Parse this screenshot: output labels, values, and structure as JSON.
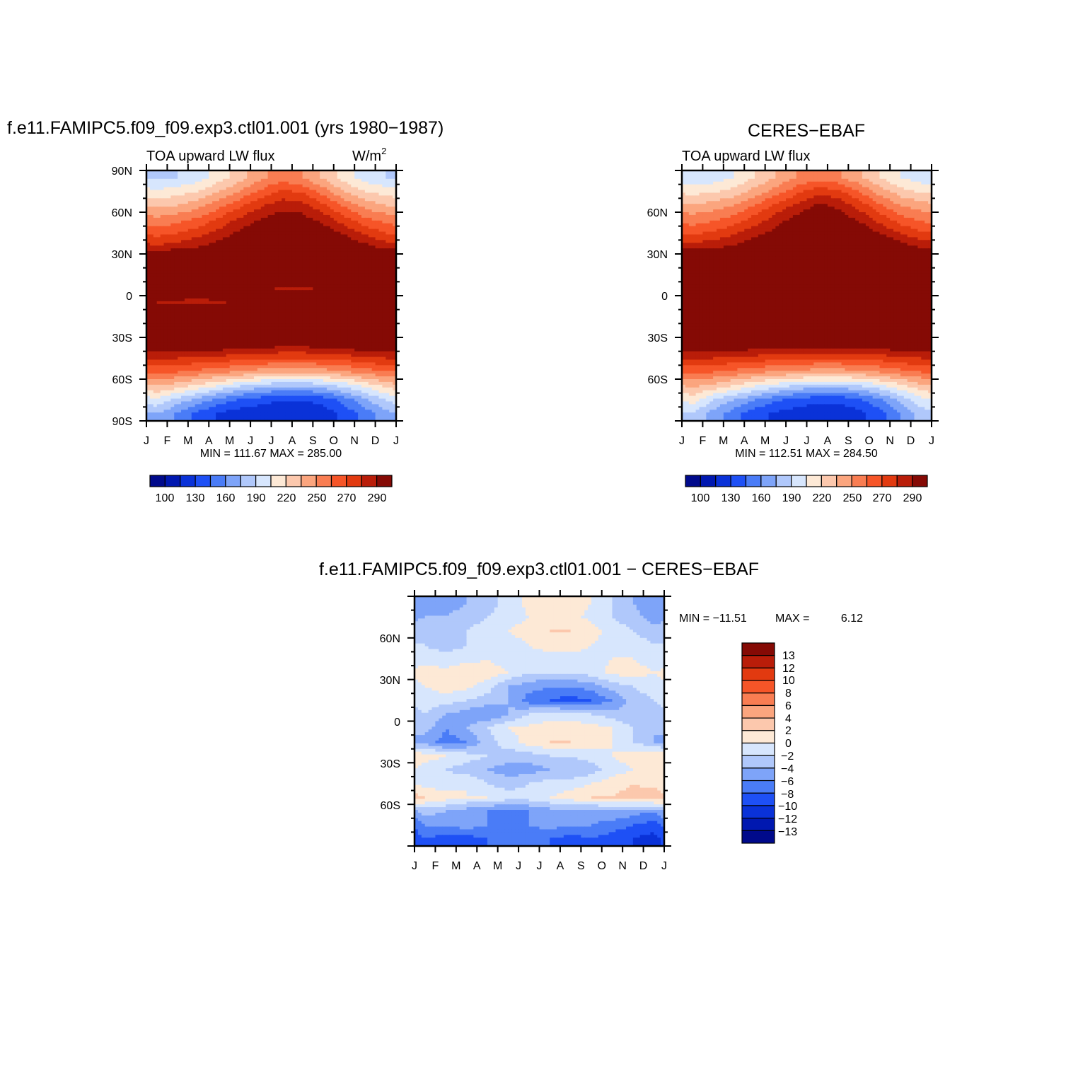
{
  "chart_data": [
    {
      "type": "heatmap",
      "title": "f.e11.FAMIPC5.f09_f09.exp3.ctl01.001 (yrs 1980−1987)",
      "subtitle_left": "TOA upward LW flux",
      "units_label": "W/m",
      "units_superscript": "2",
      "stats": "MIN = 111.67 MAX = 285.00",
      "x_ticks": [
        "J",
        "F",
        "M",
        "A",
        "M",
        "J",
        "J",
        "A",
        "S",
        "O",
        "N",
        "D",
        "J"
      ],
      "y_ticks": [
        "90N",
        "60N",
        "30N",
        "0",
        "30S",
        "60S",
        "90S"
      ],
      "ylim": [
        -90,
        90
      ],
      "colorbar_levels": [
        100,
        110,
        120,
        130,
        140,
        150,
        160,
        170,
        180,
        190,
        200,
        210,
        220,
        230,
        240,
        250,
        260,
        270,
        280,
        290
      ],
      "colorbar_labels": [
        "100",
        "130",
        "160",
        "190",
        "220",
        "250",
        "270",
        "290"
      ],
      "colorbar_colors": [
        "#000a8b",
        "#0018b0",
        "#0a32d8",
        "#1e50f5",
        "#4a7cf7",
        "#7ea4f9",
        "#b0c8fb",
        "#d7e6fd",
        "#fde9d6",
        "#fcc8ad",
        "#fba57e",
        "#f97d52",
        "#f65528",
        "#e23a10",
        "#b91d09",
        "#850a05"
      ],
      "row_lat": [
        85,
        75,
        65,
        55,
        45,
        35,
        25,
        15,
        5,
        -5,
        -15,
        -25,
        -35,
        -45,
        -55,
        -65,
        -75,
        -85
      ],
      "z": [
        [
          158,
          160,
          165,
          175,
          185,
          198,
          205,
          200,
          188,
          175,
          165,
          160
        ],
        [
          172,
          175,
          180,
          190,
          200,
          212,
          222,
          218,
          205,
          190,
          180,
          175
        ],
        [
          188,
          190,
          196,
          206,
          218,
          228,
          236,
          234,
          222,
          208,
          196,
          190
        ],
        [
          202,
          206,
          212,
          222,
          232,
          240,
          246,
          244,
          236,
          224,
          212,
          206
        ],
        [
          216,
          220,
          226,
          234,
          242,
          250,
          256,
          254,
          248,
          238,
          228,
          220
        ],
        [
          232,
          236,
          240,
          246,
          252,
          260,
          266,
          266,
          260,
          252,
          244,
          236
        ],
        [
          262,
          262,
          258,
          258,
          262,
          268,
          270,
          270,
          268,
          266,
          266,
          264
        ],
        [
          284,
          283,
          278,
          272,
          270,
          266,
          264,
          262,
          262,
          266,
          274,
          280
        ],
        [
          262,
          260,
          258,
          256,
          252,
          246,
          236,
          236,
          244,
          252,
          258,
          262
        ],
        [
          240,
          236,
          234,
          238,
          244,
          250,
          256,
          258,
          254,
          248,
          244,
          240
        ],
        [
          262,
          262,
          264,
          266,
          270,
          274,
          279,
          280,
          276,
          270,
          266,
          264
        ],
        [
          266,
          266,
          262,
          262,
          262,
          264,
          264,
          264,
          262,
          262,
          264,
          266
        ],
        [
          252,
          252,
          252,
          250,
          248,
          246,
          244,
          244,
          246,
          248,
          250,
          252
        ],
        [
          232,
          230,
          228,
          226,
          224,
          222,
          220,
          220,
          222,
          224,
          228,
          230
        ],
        [
          212,
          210,
          206,
          202,
          198,
          194,
          192,
          192,
          194,
          198,
          204,
          208
        ],
        [
          190,
          184,
          176,
          168,
          160,
          154,
          150,
          150,
          154,
          162,
          172,
          182
        ],
        [
          168,
          156,
          146,
          136,
          128,
          124,
          120,
          120,
          124,
          134,
          148,
          160
        ],
        [
          150,
          138,
          126,
          118,
          114,
          112,
          112,
          112,
          114,
          122,
          134,
          146
        ]
      ]
    },
    {
      "type": "heatmap",
      "title": "CERES−EBAF",
      "subtitle_left": "TOA upward LW flux",
      "stats": "MIN = 112.51 MAX = 284.50",
      "x_ticks": [
        "J",
        "F",
        "M",
        "A",
        "M",
        "J",
        "J",
        "A",
        "S",
        "O",
        "N",
        "D",
        "J"
      ],
      "y_ticks": [
        "60N",
        "30N",
        "0",
        "30S",
        "60S"
      ],
      "ylim": [
        -90,
        90
      ],
      "colorbar_labels": [
        "100",
        "130",
        "160",
        "190",
        "220",
        "250",
        "270",
        "290"
      ],
      "z": [
        [
          162,
          164,
          170,
          180,
          190,
          200,
          206,
          202,
          192,
          180,
          170,
          164
        ],
        [
          176,
          178,
          184,
          194,
          204,
          216,
          226,
          222,
          210,
          195,
          184,
          178
        ],
        [
          192,
          194,
          200,
          210,
          222,
          232,
          242,
          238,
          226,
          212,
          200,
          194
        ],
        [
          204,
          208,
          214,
          224,
          234,
          244,
          250,
          246,
          238,
          226,
          214,
          208
        ],
        [
          218,
          222,
          228,
          236,
          244,
          252,
          258,
          256,
          250,
          240,
          230,
          222
        ],
        [
          236,
          238,
          242,
          248,
          256,
          262,
          268,
          268,
          262,
          254,
          246,
          238
        ],
        [
          264,
          264,
          262,
          262,
          264,
          268,
          270,
          270,
          268,
          266,
          266,
          266
        ],
        [
          280,
          281,
          278,
          274,
          270,
          266,
          264,
          264,
          266,
          270,
          276,
          278
        ],
        [
          260,
          258,
          256,
          254,
          250,
          246,
          240,
          240,
          246,
          252,
          256,
          260
        ],
        [
          244,
          242,
          240,
          242,
          246,
          252,
          256,
          256,
          254,
          250,
          248,
          246
        ],
        [
          264,
          264,
          266,
          268,
          272,
          276,
          280,
          280,
          276,
          272,
          268,
          266
        ],
        [
          264,
          264,
          262,
          262,
          264,
          266,
          266,
          266,
          264,
          262,
          262,
          264
        ],
        [
          250,
          250,
          250,
          248,
          248,
          246,
          246,
          246,
          246,
          248,
          250,
          250
        ],
        [
          230,
          230,
          228,
          226,
          224,
          222,
          220,
          220,
          222,
          224,
          228,
          230
        ],
        [
          212,
          210,
          206,
          202,
          198,
          196,
          194,
          194,
          196,
          200,
          206,
          210
        ],
        [
          192,
          186,
          178,
          170,
          164,
          158,
          154,
          154,
          158,
          166,
          176,
          186
        ],
        [
          174,
          160,
          150,
          140,
          132,
          126,
          122,
          122,
          128,
          138,
          152,
          166
        ],
        [
          160,
          146,
          134,
          124,
          118,
          114,
          113,
          113,
          116,
          126,
          140,
          154
        ]
      ]
    },
    {
      "type": "heatmap",
      "title": "f.e11.FAMIPC5.f09_f09.exp3.ctl01.001 − CERES−EBAF",
      "stats_min_label": "MIN = −11.51",
      "stats_max_label": "MAX =",
      "stats_max_value": "6.12",
      "x_ticks": [
        "J",
        "F",
        "M",
        "A",
        "M",
        "J",
        "J",
        "A",
        "S",
        "O",
        "N",
        "D",
        "J"
      ],
      "y_ticks": [
        "60N",
        "30N",
        "0",
        "30S",
        "60S"
      ],
      "ylim": [
        -90,
        90
      ],
      "colorbar_levels": [
        -13,
        -12,
        -10,
        -8,
        -6,
        -4,
        -2,
        0,
        2,
        4,
        6,
        8,
        10,
        12,
        13
      ],
      "colorbar_labels": [
        "13",
        "12",
        "10",
        "8",
        "6",
        "4",
        "2",
        "0",
        "−2",
        "−4",
        "−6",
        "−8",
        "−10",
        "−12",
        "−13"
      ],
      "colorbar_colors": [
        "#000a8b",
        "#0018b0",
        "#0a32d8",
        "#1e50f5",
        "#4a7cf7",
        "#7ea4f9",
        "#b0c8fb",
        "#d7e6fd",
        "#fde9d6",
        "#fcc8ad",
        "#fba57e",
        "#f97d52",
        "#f65528",
        "#e23a10",
        "#b91d09",
        "#850a05"
      ],
      "z": [
        [
          -5,
          -5,
          -4,
          -3,
          -1,
          0.5,
          1,
          1,
          0,
          -2,
          -4,
          -6
        ],
        [
          -4,
          -4,
          -3,
          -2,
          -1,
          0,
          0.5,
          0.5,
          -0.5,
          -2,
          -3,
          -5
        ],
        [
          -3,
          -3,
          -2,
          -1,
          0,
          1,
          2,
          2,
          1,
          -1,
          -2,
          -3
        ],
        [
          -2,
          -3,
          -2,
          -1,
          -1,
          0,
          1,
          1,
          0,
          -1,
          -1,
          -2
        ],
        [
          -1,
          -1,
          -1,
          0,
          -1,
          -1,
          -1,
          -1,
          -0.5,
          0,
          0,
          -1
        ],
        [
          1,
          0.5,
          2,
          1,
          0,
          -2,
          -2,
          -2,
          -1,
          0.5,
          1,
          0
        ],
        [
          0,
          1,
          0.5,
          -1,
          -4,
          -5,
          -6,
          -6,
          -5,
          -3,
          -2,
          -1
        ],
        [
          -1,
          -1,
          -2,
          -3,
          -4,
          -7,
          -8,
          -9,
          -8,
          -6,
          -3,
          -2
        ],
        [
          -2,
          -4,
          -5,
          -6,
          -4,
          -2,
          -1,
          -1,
          -2,
          -3,
          -4,
          -3
        ],
        [
          -3,
          -6,
          -4,
          -2,
          0,
          0.5,
          1,
          1,
          1,
          0,
          -2,
          -4
        ],
        [
          -5,
          -7,
          -6,
          -3,
          -1,
          1,
          2,
          2,
          1,
          0,
          -2,
          -4
        ],
        [
          1,
          0,
          -1,
          -2,
          -3,
          -3,
          -2,
          -2,
          -1,
          0,
          1,
          2
        ],
        [
          -1,
          -2,
          -3,
          -4,
          -5,
          -5,
          -4,
          -4,
          -3,
          -1,
          0,
          1
        ],
        [
          -1,
          -1,
          0,
          -2,
          -3,
          -2,
          -1,
          -1,
          0,
          1,
          2,
          1
        ],
        [
          2,
          1,
          0,
          0,
          -1,
          -1,
          0,
          1,
          2,
          2,
          3,
          4
        ],
        [
          -3,
          -4,
          -5,
          -6,
          -7,
          -6,
          -5,
          -5,
          -5,
          -4,
          -5,
          -6
        ],
        [
          -6,
          -6,
          -5,
          -6,
          -7,
          -6,
          -5,
          -6,
          -6,
          -7,
          -8,
          -9
        ],
        [
          -8,
          -9,
          -9,
          -8,
          -8,
          -8,
          -8,
          -9,
          -8,
          -9,
          -10,
          -11
        ]
      ]
    }
  ]
}
